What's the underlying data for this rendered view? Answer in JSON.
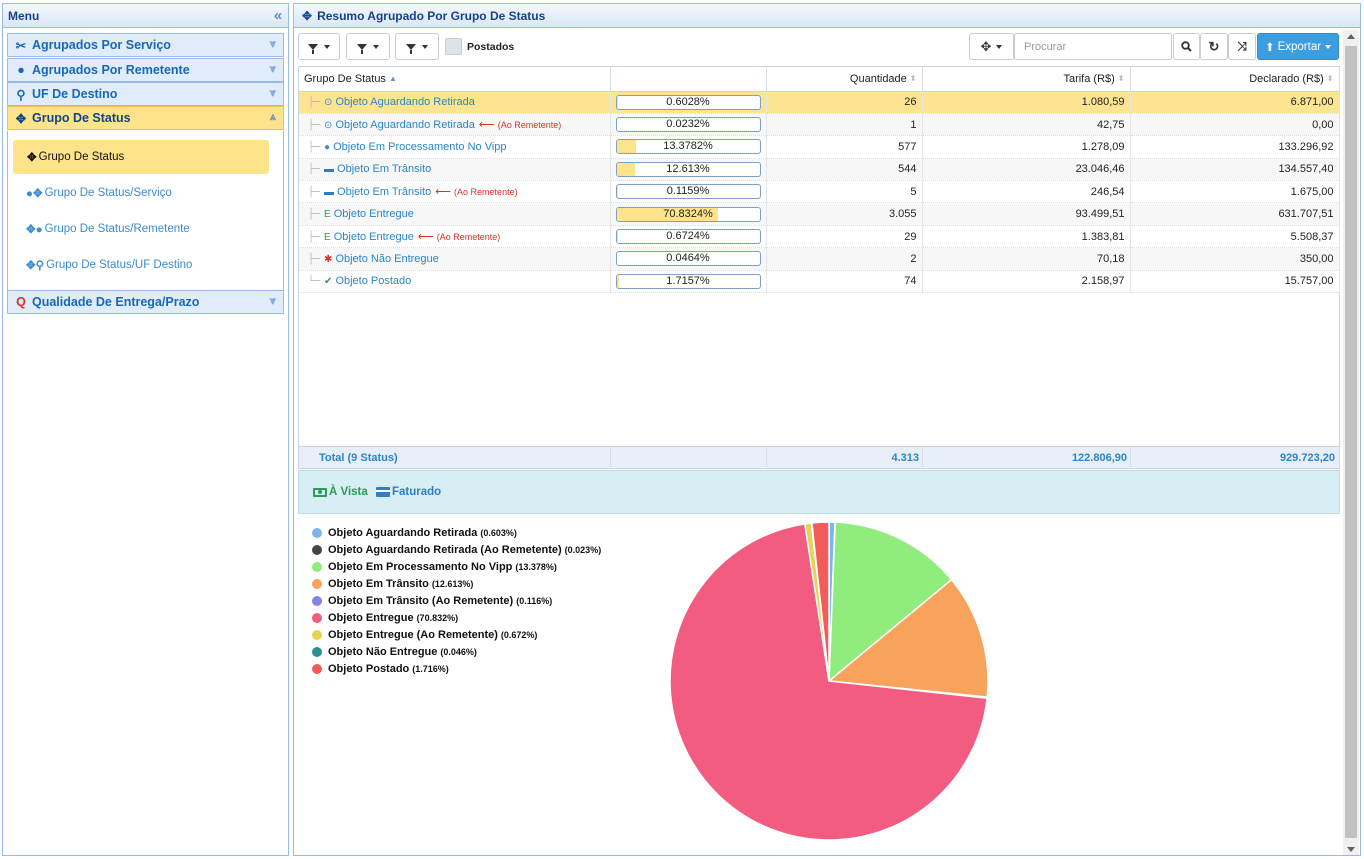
{
  "menu": {
    "title": "Menu",
    "sections": [
      {
        "label": "Agrupados Por Serviço",
        "icon": "scissors-icon"
      },
      {
        "label": "Agrupados Por Remetente",
        "icon": "user-icon"
      },
      {
        "label": "UF De Destino",
        "icon": "map-pin-icon"
      },
      {
        "label": "Grupo De Status",
        "icon": "move-icon"
      },
      {
        "label": "Qualidade De Entrega/Prazo",
        "icon": "quality-icon"
      }
    ],
    "subitems": [
      {
        "label": "Grupo De Status"
      },
      {
        "label": "Grupo De Status/Serviço"
      },
      {
        "label": "Grupo De Status/Remetente"
      },
      {
        "label": "Grupo De Status/UF Destino"
      }
    ]
  },
  "main": {
    "title": "Resumo Agrupado Por Grupo De Status"
  },
  "toolbar": {
    "filter_checkbox_label": "Postados",
    "search_placeholder": "Procurar",
    "export_label": "Exportar"
  },
  "table": {
    "columns": [
      "Grupo De Status",
      "",
      "Quantidade",
      "Tarifa (R$)",
      "Declarado (R$)"
    ],
    "rows": [
      {
        "tree": "├",
        "icon": "clock-icon",
        "glyph": "⊙",
        "glyph_color": "#2a86c8",
        "status": "Objeto Aguardando Retirada",
        "ao_remetente": "",
        "pct_text": "0.6028%",
        "pct": 0.6028,
        "quantidade": "26",
        "tarifa": "1.080,59",
        "declarado": "6.871,00"
      },
      {
        "tree": "├",
        "icon": "clock-icon",
        "glyph": "⊙",
        "glyph_color": "#2a86c8",
        "status": "Objeto Aguardando Retirada",
        "ao_remetente": "(Ao Remetente)",
        "pct_text": "0.0232%",
        "pct": 0.0232,
        "quantidade": "1",
        "tarifa": "42,75",
        "declarado": "0,00"
      },
      {
        "tree": "├",
        "icon": "globe-icon",
        "glyph": "●",
        "glyph_color": "#3a8fd0",
        "status": "Objeto Em Processamento No Vipp",
        "ao_remetente": "",
        "pct_text": "13.3782%",
        "pct": 13.3782,
        "quantidade": "577",
        "tarifa": "1.278,09",
        "declarado": "133.296,92"
      },
      {
        "tree": "├",
        "icon": "truck-icon",
        "glyph": "▬",
        "glyph_color": "#2f7ec2",
        "status": "Objeto Em Trânsito",
        "ao_remetente": "",
        "pct_text": "12.613%",
        "pct": 12.613,
        "quantidade": "544",
        "tarifa": "23.046,46",
        "declarado": "134.557,40"
      },
      {
        "tree": "├",
        "icon": "truck-icon",
        "glyph": "▬",
        "glyph_color": "#2f7ec2",
        "status": "Objeto Em Trânsito",
        "ao_remetente": "(Ao Remetente)",
        "pct_text": "0.1159%",
        "pct": 0.1159,
        "quantidade": "5",
        "tarifa": "246,54",
        "declarado": "1.675,00"
      },
      {
        "tree": "├",
        "icon": "delivered-icon",
        "glyph": "E",
        "glyph_color": "#2e9a56",
        "status": "Objeto Entregue",
        "ao_remetente": "",
        "pct_text": "70.8324%",
        "pct": 70.8324,
        "quantidade": "3.055",
        "tarifa": "93.499,51",
        "declarado": "631.707,51"
      },
      {
        "tree": "├",
        "icon": "delivered-icon",
        "glyph": "E",
        "glyph_color": "#2e9a56",
        "status": "Objeto Entregue",
        "ao_remetente": "(Ao Remetente)",
        "pct_text": "0.6724%",
        "pct": 0.6724,
        "quantidade": "29",
        "tarifa": "1.383,81",
        "declarado": "5.508,37"
      },
      {
        "tree": "├",
        "icon": "bug-icon",
        "glyph": "✱",
        "glyph_color": "#d9322b",
        "status": "Objeto Não Entregue",
        "ao_remetente": "",
        "pct_text": "0.0464%",
        "pct": 0.0464,
        "quantidade": "2",
        "tarifa": "70,18",
        "declarado": "350,00"
      },
      {
        "tree": "└",
        "icon": "check-icon",
        "glyph": "✔",
        "glyph_color": "#2e9a56",
        "status": "Objeto Postado",
        "ao_remetente": "",
        "pct_text": "1.7157%",
        "pct": 1.7157,
        "quantidade": "74",
        "tarifa": "2.158,97",
        "declarado": "15.757,00"
      }
    ],
    "footer": {
      "label": "Total (9 Status)",
      "quantidade": "4.313",
      "tarifa": "122.806,90",
      "declarado": "929.723,20"
    }
  },
  "payment": {
    "a_vista": "À Vista",
    "faturado": "Faturado"
  },
  "chart_data": {
    "type": "pie",
    "legend_position": "left",
    "series": [
      {
        "name": "Objeto Aguardando Retirada",
        "pct_label": "(0.603%)",
        "value": 0.603,
        "color": "#7cb5ec"
      },
      {
        "name": "Objeto Aguardando Retirada (Ao Remetente)",
        "pct_label": "(0.023%)",
        "value": 0.023,
        "color": "#434348"
      },
      {
        "name": "Objeto Em Processamento No Vipp",
        "pct_label": "(13.378%)",
        "value": 13.378,
        "color": "#90ed7d"
      },
      {
        "name": "Objeto Em Trânsito",
        "pct_label": "(12.613%)",
        "value": 12.613,
        "color": "#f7a35c"
      },
      {
        "name": "Objeto Em Trânsito (Ao Remetente)",
        "pct_label": "(0.116%)",
        "value": 0.116,
        "color": "#8085e9"
      },
      {
        "name": "Objeto Entregue",
        "pct_label": "(70.832%)",
        "value": 70.832,
        "color": "#f15c80"
      },
      {
        "name": "Objeto Entregue (Ao Remetente)",
        "pct_label": "(0.672%)",
        "value": 0.672,
        "color": "#e4d354"
      },
      {
        "name": "Objeto Não Entregue",
        "pct_label": "(0.046%)",
        "value": 0.046,
        "color": "#2b908f"
      },
      {
        "name": "Objeto Postado",
        "pct_label": "(1.716%)",
        "value": 1.716,
        "color": "#f45b5b"
      }
    ]
  }
}
